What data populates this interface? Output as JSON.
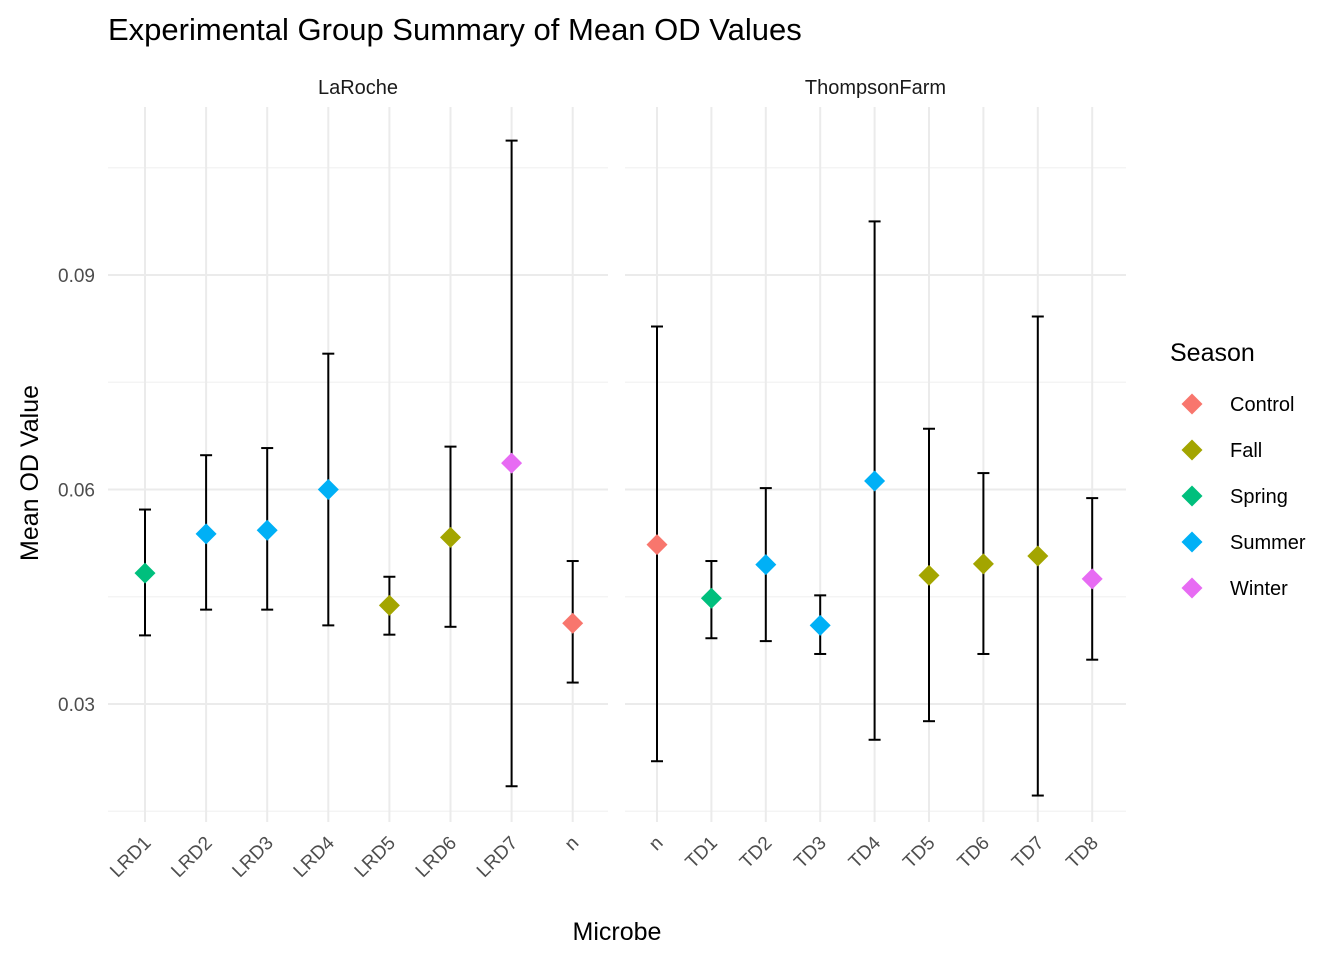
{
  "chart_data": {
    "type": "scatter",
    "subtype": "point-with-errorbars, faceted",
    "title": "Experimental Group Summary of Mean OD Values",
    "xlabel": "Microbe",
    "ylabel": "Mean OD Value",
    "ylim": [
      0.0135,
      0.1135
    ],
    "yticks": [
      0.03,
      0.06,
      0.09
    ],
    "ytick_labels": [
      "0.03",
      "0.06",
      "0.09"
    ],
    "grid": true,
    "legend": {
      "title": "Season",
      "position": "right",
      "entries": [
        {
          "name": "Control",
          "color": "#F8766D"
        },
        {
          "name": "Fall",
          "color": "#A3A500"
        },
        {
          "name": "Spring",
          "color": "#00BF7D"
        },
        {
          "name": "Summer",
          "color": "#00B0F6"
        },
        {
          "name": "Winter",
          "color": "#E76BF3"
        }
      ]
    },
    "facets": [
      {
        "name": "LaRoche",
        "categories": [
          "LRD1",
          "LRD2",
          "LRD3",
          "LRD4",
          "LRD5",
          "LRD6",
          "LRD7",
          "n"
        ],
        "points": [
          {
            "x": "LRD1",
            "season": "Spring",
            "mean": 0.0483,
            "lower": 0.0396,
            "upper": 0.0572
          },
          {
            "x": "LRD2",
            "season": "Summer",
            "mean": 0.0538,
            "lower": 0.0432,
            "upper": 0.0648
          },
          {
            "x": "LRD3",
            "season": "Summer",
            "mean": 0.0543,
            "lower": 0.0432,
            "upper": 0.0658
          },
          {
            "x": "LRD4",
            "season": "Summer",
            "mean": 0.06,
            "lower": 0.041,
            "upper": 0.079
          },
          {
            "x": "LRD5",
            "season": "Fall",
            "mean": 0.0438,
            "lower": 0.0397,
            "upper": 0.0478
          },
          {
            "x": "LRD6",
            "season": "Fall",
            "mean": 0.0533,
            "lower": 0.0408,
            "upper": 0.066
          },
          {
            "x": "LRD7",
            "season": "Winter",
            "mean": 0.0637,
            "lower": 0.0185,
            "upper": 0.1088
          },
          {
            "x": "n",
            "season": "Control",
            "mean": 0.0413,
            "lower": 0.033,
            "upper": 0.05
          }
        ]
      },
      {
        "name": "ThompsonFarm",
        "categories": [
          "n",
          "TD1",
          "TD2",
          "TD3",
          "TD4",
          "TD5",
          "TD6",
          "TD7",
          "TD8"
        ],
        "points": [
          {
            "x": "n",
            "season": "Control",
            "mean": 0.0523,
            "lower": 0.022,
            "upper": 0.0828
          },
          {
            "x": "TD1",
            "season": "Spring",
            "mean": 0.0448,
            "lower": 0.0392,
            "upper": 0.05
          },
          {
            "x": "TD2",
            "season": "Summer",
            "mean": 0.0495,
            "lower": 0.0388,
            "upper": 0.0602
          },
          {
            "x": "TD3",
            "season": "Summer",
            "mean": 0.041,
            "lower": 0.037,
            "upper": 0.0452
          },
          {
            "x": "TD4",
            "season": "Summer",
            "mean": 0.0612,
            "lower": 0.025,
            "upper": 0.0975
          },
          {
            "x": "TD5",
            "season": "Fall",
            "mean": 0.048,
            "lower": 0.0276,
            "upper": 0.0685
          },
          {
            "x": "TD6",
            "season": "Fall",
            "mean": 0.0496,
            "lower": 0.037,
            "upper": 0.0623
          },
          {
            "x": "TD7",
            "season": "Fall",
            "mean": 0.0507,
            "lower": 0.0172,
            "upper": 0.0842
          },
          {
            "x": "TD8",
            "season": "Winter",
            "mean": 0.0475,
            "lower": 0.0362,
            "upper": 0.0588
          }
        ]
      }
    ]
  }
}
